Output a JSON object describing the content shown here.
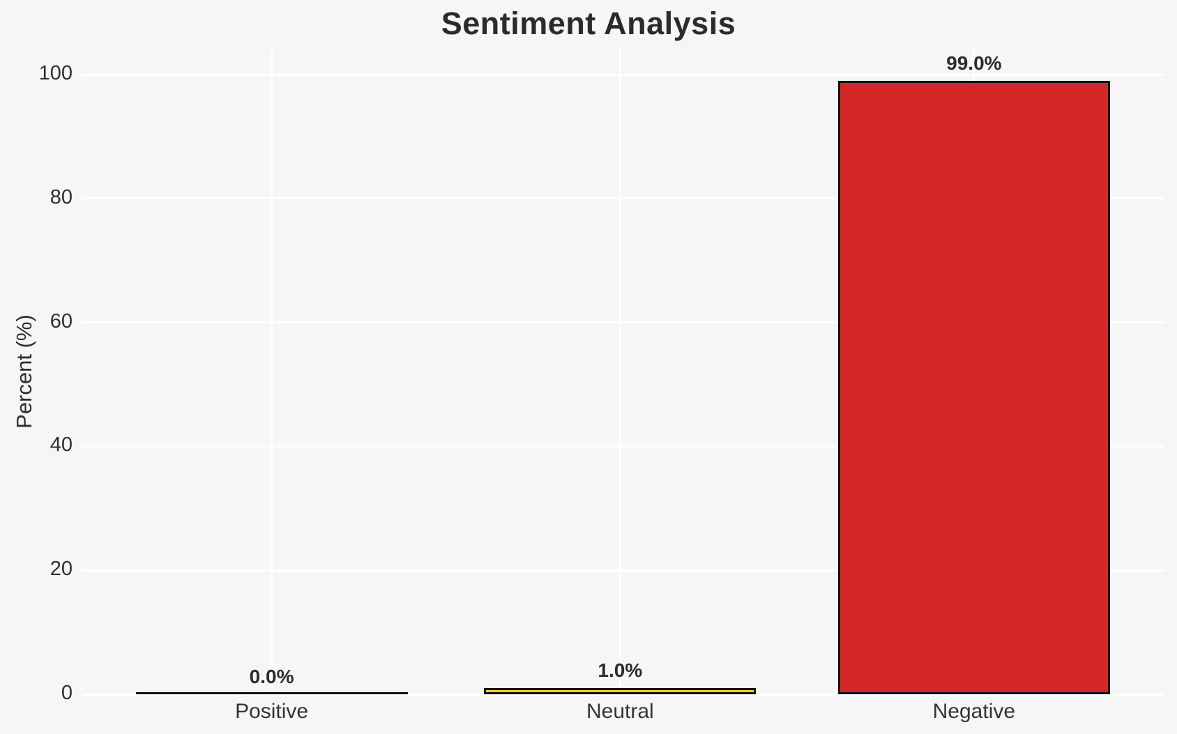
{
  "chart_data": {
    "type": "bar",
    "title": "Sentiment Analysis",
    "xlabel": "",
    "ylabel": "Percent (%)",
    "categories": [
      "Positive",
      "Neutral",
      "Negative"
    ],
    "values": [
      0.0,
      1.0,
      99.0
    ],
    "value_labels": [
      "0.0%",
      "1.0%",
      "99.0%"
    ],
    "bar_colors": [
      null,
      "#f2ce35",
      "#d62728"
    ],
    "bar_edge_color": "#111111",
    "yticks": [
      0,
      20,
      40,
      60,
      80,
      100
    ],
    "ylim": [
      0,
      100
    ],
    "grid": "on",
    "gridline_color": "#ffffff",
    "background_color": "#f6f6f7",
    "legend": "none"
  }
}
